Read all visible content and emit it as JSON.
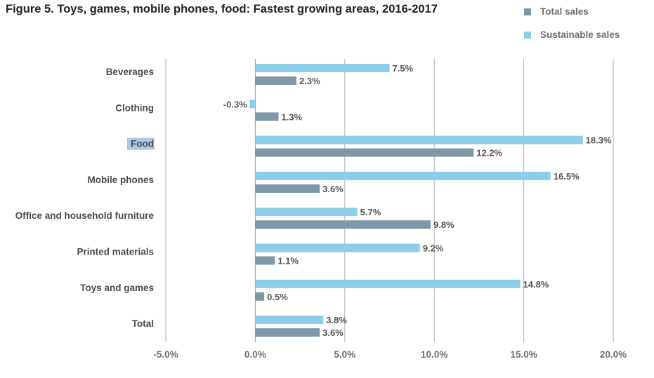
{
  "title": "Figure 5. Toys, games, mobile phones, food: Fastest growing areas, 2016-2017",
  "legend": [
    {
      "label": "Total sales",
      "color": "#7f98a5"
    },
    {
      "label": "Sustainable sales",
      "color": "#8ccde9"
    }
  ],
  "chart_data": {
    "type": "bar",
    "orientation": "horizontal",
    "categories": [
      "Beverages",
      "Clothing",
      "Food",
      "Mobile phones",
      "Office and household furniture",
      "Printed materials",
      "Toys and games",
      "Total"
    ],
    "series": [
      {
        "name": "Sustainable sales",
        "color": "#8ccde9",
        "values": [
          7.5,
          -0.3,
          18.3,
          16.5,
          5.7,
          9.2,
          14.8,
          3.8
        ],
        "labels": [
          "7.5%",
          "-0.3%",
          "18.3%",
          "16.5%",
          "5.7%",
          "9.2%",
          "14.8%",
          "3.8%"
        ]
      },
      {
        "name": "Total sales",
        "color": "#7f98a5",
        "values": [
          2.3,
          1.3,
          12.2,
          3.6,
          9.8,
          1.1,
          0.5,
          3.6
        ],
        "labels": [
          "2.3%",
          "1.3%",
          "12.2%",
          "3.6%",
          "9.8%",
          "1.1%",
          "0.5%",
          "3.6%"
        ]
      }
    ],
    "xlim": [
      -5,
      20
    ],
    "xticks": [
      -5,
      0,
      5,
      10,
      15,
      20
    ],
    "xtick_labels": [
      "-5.0%",
      "0.0%",
      "5.0%",
      "10.0%",
      "15.0%",
      "20.0%"
    ],
    "grid": "vertical",
    "legend_position": "top-right",
    "highlighted_category": "Food"
  }
}
